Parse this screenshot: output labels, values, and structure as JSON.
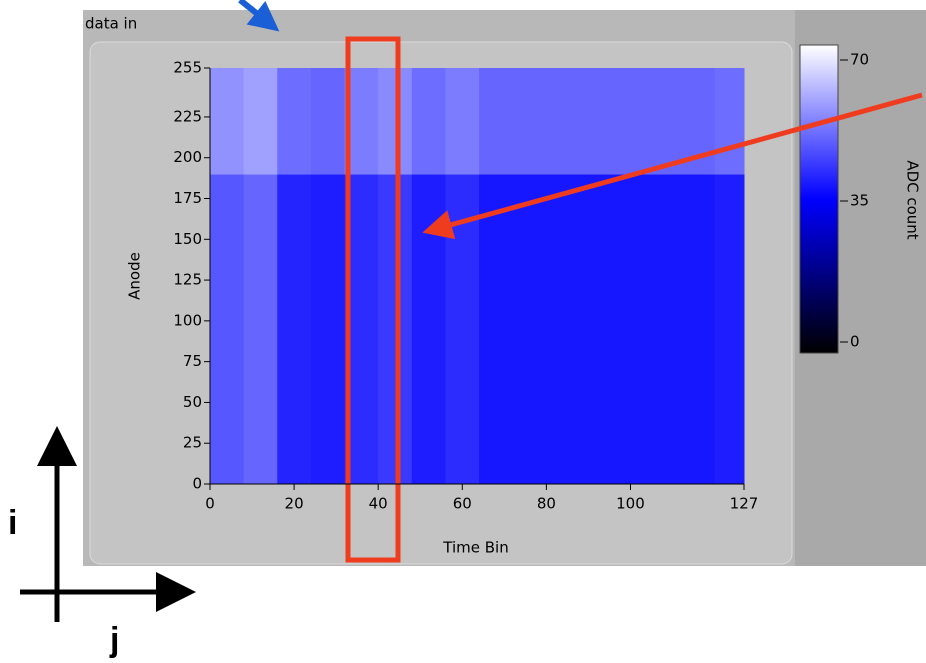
{
  "chart_data": {
    "type": "heatmap",
    "title": "data in",
    "x_label": "Time Bin",
    "y_label": "Anode",
    "colorbar_label": "ADC count",
    "xlim": [
      0,
      127
    ],
    "ylim": [
      0,
      255
    ],
    "zlim": [
      0,
      70
    ],
    "xticks": [
      0,
      20,
      40,
      60,
      80,
      100,
      127
    ],
    "yticks": [
      0,
      25,
      50,
      75,
      100,
      125,
      150,
      175,
      200,
      225,
      255
    ],
    "zticks": [
      0,
      35,
      70
    ],
    "x_edges": [
      0,
      8,
      16,
      24,
      32,
      40,
      48,
      56,
      64,
      72,
      80,
      88,
      96,
      104,
      112,
      120,
      127
    ],
    "y_edges": [
      0,
      190,
      255
    ],
    "z": [
      [
        47,
        49,
        40,
        39,
        41,
        43,
        39,
        41,
        38,
        38,
        38,
        38,
        38,
        38,
        38,
        39
      ],
      [
        55,
        57,
        50,
        49,
        52,
        54,
        50,
        52,
        49,
        49,
        49,
        49,
        49,
        49,
        49,
        50
      ]
    ]
  },
  "annotations": [
    "i",
    "j"
  ]
}
